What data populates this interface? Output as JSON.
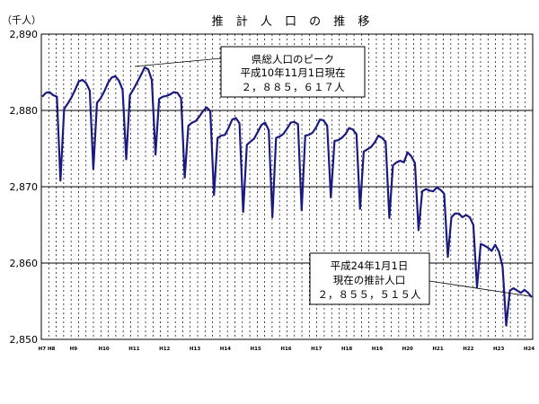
{
  "chart_data": {
    "type": "line",
    "title": "推 計 人 口 の 推 移",
    "unit_label": "（千人）",
    "xlabel": "",
    "ylabel": "",
    "ylim": [
      2850,
      2890
    ],
    "y_ticks": [
      "2,890",
      "2,880",
      "2,870",
      "2,860",
      "2,850"
    ],
    "x_tick_labels": [
      "H7 H8",
      "H9",
      "H10",
      "H11",
      "H12",
      "H13",
      "H14",
      "H15",
      "H16",
      "H17",
      "H18",
      "H19",
      "H20",
      "H21",
      "H22",
      "H23",
      "H24"
    ],
    "grid": {
      "horizontal": true,
      "vertical_dashed": true
    },
    "colors": {
      "series": "#1a1a80",
      "grid": "#000000"
    },
    "series": [
      {
        "values": [
          2881.8,
          2882.3,
          2882.4,
          2882.0,
          2881.8,
          2870.8,
          2880.2,
          2880.9,
          2881.7,
          2882.7,
          2883.8,
          2884.0,
          2883.6,
          2882.6,
          2872.3,
          2881.0,
          2881.6,
          2882.5,
          2883.6,
          2884.3,
          2884.5,
          2883.9,
          2882.7,
          2873.6,
          2882.0,
          2882.8,
          2883.7,
          2884.6,
          2885.617,
          2885.4,
          2884.0,
          2874.2,
          2881.5,
          2881.8,
          2881.9,
          2882.1,
          2882.4,
          2882.3,
          2881.6,
          2871.2,
          2878.0,
          2878.4,
          2878.6,
          2879.2,
          2879.9,
          2880.4,
          2879.9,
          2868.9,
          2876.4,
          2876.7,
          2876.8,
          2877.7,
          2878.8,
          2879.0,
          2878.3,
          2866.7,
          2875.5,
          2875.9,
          2876.3,
          2877.2,
          2878.1,
          2878.4,
          2877.4,
          2866.0,
          2876.4,
          2876.6,
          2876.9,
          2877.6,
          2878.4,
          2878.5,
          2878.2,
          2866.9,
          2876.7,
          2876.8,
          2877.1,
          2877.8,
          2878.8,
          2878.7,
          2878.0,
          2868.6,
          2876.0,
          2876.1,
          2876.4,
          2876.9,
          2877.7,
          2877.5,
          2876.9,
          2867.1,
          2874.6,
          2874.9,
          2875.2,
          2875.8,
          2876.7,
          2876.4,
          2875.9,
          2865.9,
          2872.8,
          2873.2,
          2873.4,
          2873.2,
          2874.5,
          2874.0,
          2873.1,
          2864.3,
          2869.4,
          2869.7,
          2869.5,
          2869.4,
          2869.9,
          2869.6,
          2869.1,
          2860.8,
          2866.0,
          2866.5,
          2866.5,
          2866.0,
          2866.3,
          2866.0,
          2865.0,
          2856.8,
          2862.5,
          2862.3,
          2862.0,
          2861.6,
          2862.4,
          2861.5,
          2859.5,
          2851.8,
          2856.4,
          2856.7,
          2856.4,
          2856.1,
          2856.5,
          2856.1,
          2855.515
        ]
      }
    ],
    "annotations": [
      {
        "lines": [
          "県総人口のピーク",
          "平成10年11月1日現在",
          "２，８８５，６１７人"
        ]
      },
      {
        "lines": [
          "平成24年1月1日",
          "現在の推計人口",
          "２，８５５，５１５人"
        ]
      }
    ]
  }
}
